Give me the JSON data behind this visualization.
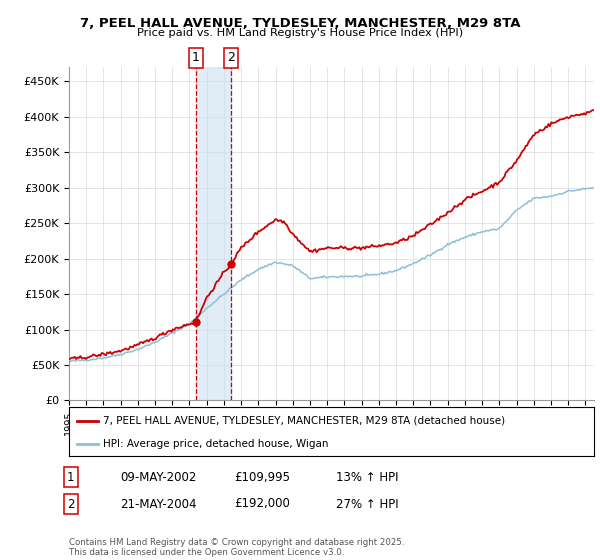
{
  "title_line1": "7, PEEL HALL AVENUE, TYLDESLEY, MANCHESTER, M29 8TA",
  "title_line2": "Price paid vs. HM Land Registry's House Price Index (HPI)",
  "xlim_start": 1995.0,
  "xlim_end": 2025.5,
  "ylim_min": 0,
  "ylim_max": 470000,
  "yticks": [
    0,
    50000,
    100000,
    150000,
    200000,
    250000,
    300000,
    350000,
    400000,
    450000
  ],
  "ytick_labels": [
    "£0",
    "£50K",
    "£100K",
    "£150K",
    "£200K",
    "£250K",
    "£300K",
    "£350K",
    "£400K",
    "£450K"
  ],
  "transaction1_date": 2002.36,
  "transaction1_price": 109995,
  "transaction2_date": 2004.39,
  "transaction2_price": 192000,
  "sale1_date_str": "09-MAY-2002",
  "sale1_price_str": "£109,995",
  "sale1_hpi_str": "13% ↑ HPI",
  "sale2_date_str": "21-MAY-2004",
  "sale2_price_str": "£192,000",
  "sale2_hpi_str": "27% ↑ HPI",
  "legend_line1": "7, PEEL HALL AVENUE, TYLDESLEY, MANCHESTER, M29 8TA (detached house)",
  "legend_line2": "HPI: Average price, detached house, Wigan",
  "footer": "Contains HM Land Registry data © Crown copyright and database right 2025.\nThis data is licensed under the Open Government Licence v3.0.",
  "line1_color": "#cc0000",
  "line2_color": "#8bbfda",
  "grid_color": "#e0e0e0",
  "shade_color": "#cce0f0"
}
